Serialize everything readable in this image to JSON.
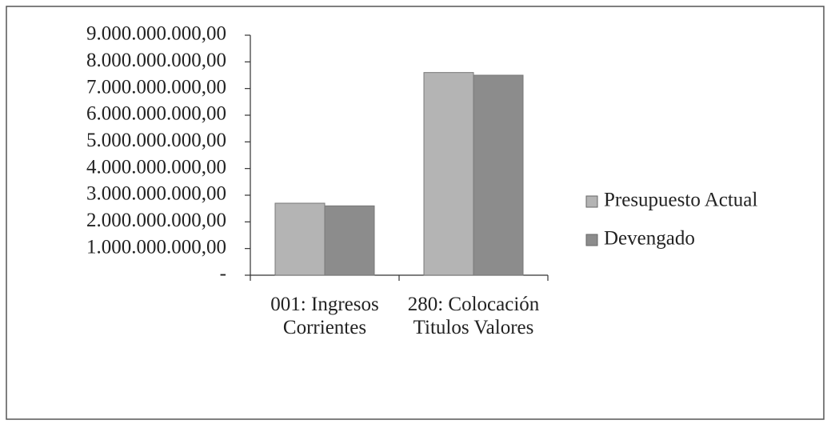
{
  "chart_data": {
    "type": "bar",
    "categories": [
      "001: Ingresos Corrientes",
      "280: Colocación Titulos Valores"
    ],
    "series": [
      {
        "name": "Presupuesto Actual",
        "color": "#b4b4b4",
        "values": [
          2700000000,
          7600000000
        ]
      },
      {
        "name": "Devengado",
        "color": "#8c8c8c",
        "values": [
          2600000000,
          7500000000
        ]
      }
    ],
    "ylim": [
      0,
      9000000000
    ],
    "yticks": [
      {
        "value": 0,
        "label": "-"
      },
      {
        "value": 1000000000,
        "label": "1.000.000.000,00"
      },
      {
        "value": 2000000000,
        "label": "2.000.000.000,00"
      },
      {
        "value": 3000000000,
        "label": "3.000.000.000,00"
      },
      {
        "value": 4000000000,
        "label": "4.000.000.000,00"
      },
      {
        "value": 5000000000,
        "label": "5.000.000.000,00"
      },
      {
        "value": 6000000000,
        "label": "6.000.000.000,00"
      },
      {
        "value": 7000000000,
        "label": "7.000.000.000,00"
      },
      {
        "value": 8000000000,
        "label": "8.000.000.000,00"
      },
      {
        "value": 9000000000,
        "label": "9.000.000.000,00"
      }
    ],
    "legend": "right"
  }
}
